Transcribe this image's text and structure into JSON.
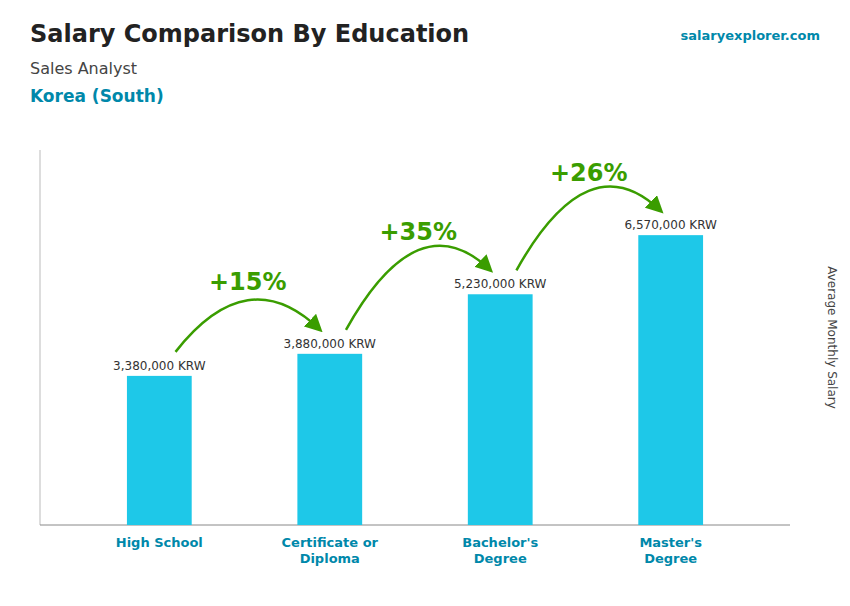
{
  "chart_data": {
    "type": "bar",
    "title": "Salary Comparison By Education",
    "subtitle": [
      "Sales Analyst",
      "Korea (South)"
    ],
    "source": "salaryexplorer.com",
    "y_label": "Average Monthly Salary",
    "categories": [
      "High School",
      "Certificate or\nDiploma",
      "Bachelor's\nDegree",
      "Master's\nDegree"
    ],
    "values": [
      3380000,
      3880000,
      5230000,
      6570000
    ],
    "value_labels": [
      "3,380,000 KRW",
      "3,880,000 KRW",
      "5,230,000 KRW",
      "6,570,000 KRW"
    ],
    "data_labels": true,
    "annotations": [
      "+15%",
      "+35%",
      "+26%"
    ],
    "color": "#1ec8e8",
    "ylim": [
      0,
      8500000
    ],
    "tick_labels": "x",
    "grid": false
  }
}
